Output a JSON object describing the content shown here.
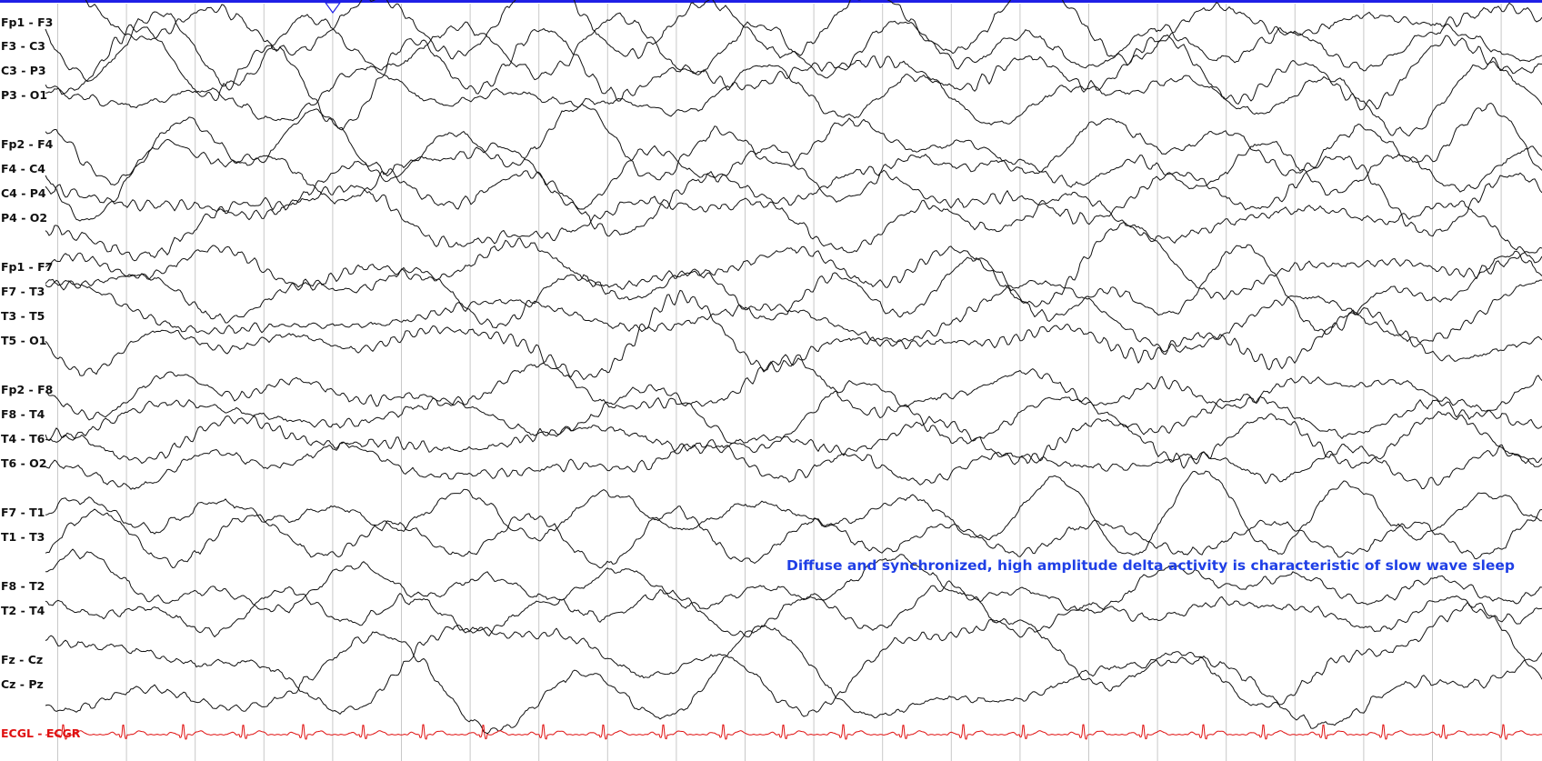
{
  "colors": {
    "background": "#ffffff",
    "top_bar": "#1f1fe6",
    "grid_line": "#c8c8c8",
    "eeg_trace": "#111111",
    "ecg_trace": "#e01010",
    "annotation": "#1f3fe6"
  },
  "icons": {
    "cursor_marker": "triangle-down-icon"
  },
  "channels": [
    {
      "label": "Fp1 - F3",
      "kind": "eeg",
      "amplitude": 1.0
    },
    {
      "label": "F3 - C3",
      "kind": "eeg",
      "amplitude": 1.1
    },
    {
      "label": "C3 - P3",
      "kind": "eeg",
      "amplitude": 1.2
    },
    {
      "label": "P3 - O1",
      "kind": "eeg",
      "amplitude": 1.3
    },
    {
      "label": "Fp2 - F4",
      "kind": "eeg",
      "amplitude": 1.0
    },
    {
      "label": "F4 - C4",
      "kind": "eeg",
      "amplitude": 1.1
    },
    {
      "label": "C4 - P4",
      "kind": "eeg",
      "amplitude": 1.2
    },
    {
      "label": "P4 - O2",
      "kind": "eeg",
      "amplitude": 1.3
    },
    {
      "label": "Fp1 - F7",
      "kind": "eeg",
      "amplitude": 1.0
    },
    {
      "label": "F7 - T3",
      "kind": "eeg",
      "amplitude": 1.1
    },
    {
      "label": "T3 - T5",
      "kind": "eeg",
      "amplitude": 1.2
    },
    {
      "label": "T5 - O1",
      "kind": "eeg",
      "amplitude": 1.3
    },
    {
      "label": "Fp2 - F8",
      "kind": "eeg",
      "amplitude": 0.8
    },
    {
      "label": "F8 - T4",
      "kind": "eeg",
      "amplitude": 0.9
    },
    {
      "label": "T4 - T6",
      "kind": "eeg",
      "amplitude": 1.0
    },
    {
      "label": "T6 - O2",
      "kind": "eeg",
      "amplitude": 1.1
    },
    {
      "label": "F7 - T1",
      "kind": "eeg",
      "amplitude": 1.1
    },
    {
      "label": "T1 - T3",
      "kind": "eeg",
      "amplitude": 1.2
    },
    {
      "label": "F8 - T2",
      "kind": "eeg",
      "amplitude": 1.0
    },
    {
      "label": "T2 - T4",
      "kind": "eeg",
      "amplitude": 1.1
    },
    {
      "label": "Fz - Cz",
      "kind": "eeg",
      "amplitude": 1.4
    },
    {
      "label": "Cz - Pz",
      "kind": "eeg",
      "amplitude": 1.5
    },
    {
      "label": "ECGL - ECGR",
      "kind": "ecg",
      "amplitude": 1.0
    }
  ],
  "annotation": {
    "text": "Diffuse and synchronized, high amplitude delta activity is characteristic of slow wave sleep"
  }
}
